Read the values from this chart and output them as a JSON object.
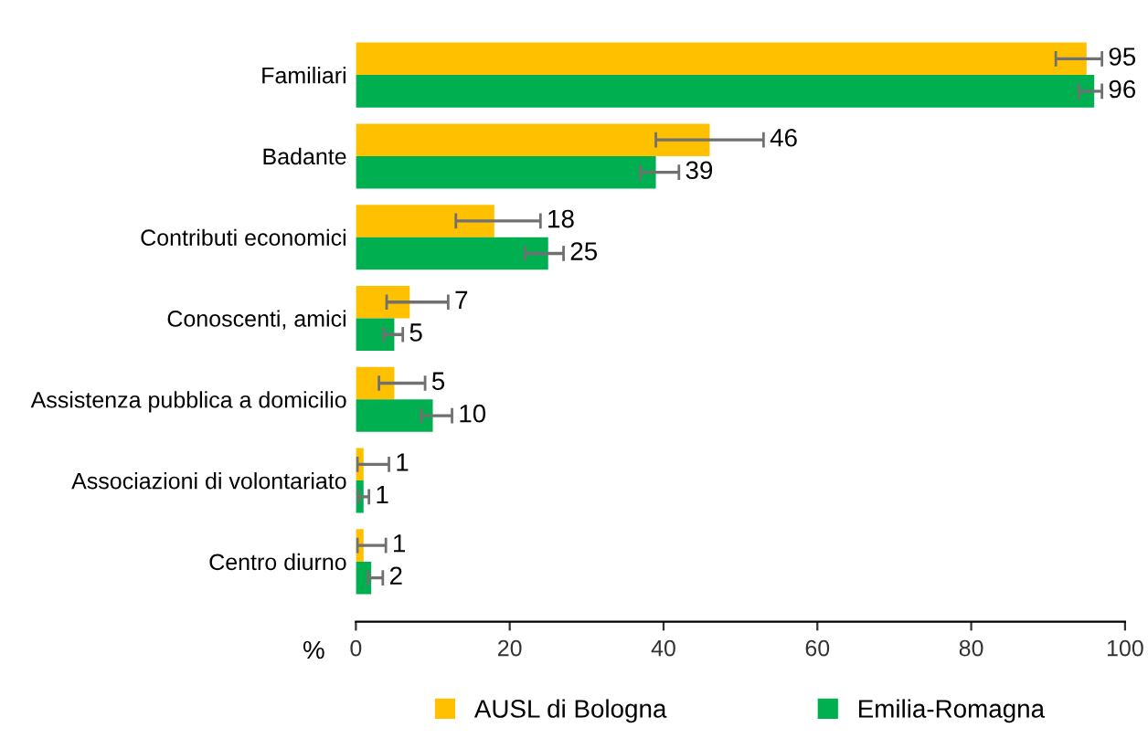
{
  "chart_data": {
    "type": "bar",
    "orientation": "horizontal",
    "xlabel": "%",
    "categories": [
      "Familiari",
      "Badante",
      "Contributi economici",
      "Conoscenti, amici",
      "Assistenza pubblica a domicilio",
      "Associazioni di volontariato",
      "Centro diurno"
    ],
    "series": [
      {
        "name": "AUSL di Bologna",
        "color": "#ffc000",
        "values": [
          95,
          46,
          18,
          7,
          5,
          1,
          1
        ],
        "errors": [
          [
            91,
            97
          ],
          [
            39,
            53
          ],
          [
            13,
            24
          ],
          [
            4,
            12
          ],
          [
            3,
            9
          ],
          [
            0.2,
            4.3
          ],
          [
            0.2,
            3.9
          ]
        ]
      },
      {
        "name": "Emilia-Romagna",
        "color": "#00b050",
        "values": [
          96,
          39,
          25,
          5,
          10,
          1,
          2
        ],
        "errors": [
          [
            94,
            97
          ],
          [
            37,
            42
          ],
          [
            22,
            27
          ],
          [
            3.6,
            6.1
          ],
          [
            8.5,
            12.5
          ],
          [
            0.3,
            1.7
          ],
          [
            1.6,
            3.5
          ]
        ]
      }
    ],
    "xlim": [
      0,
      100
    ],
    "xticks": [
      0,
      20,
      40,
      60,
      80,
      100
    ],
    "data_labels": true,
    "legend": "bottom",
    "grid": false
  }
}
